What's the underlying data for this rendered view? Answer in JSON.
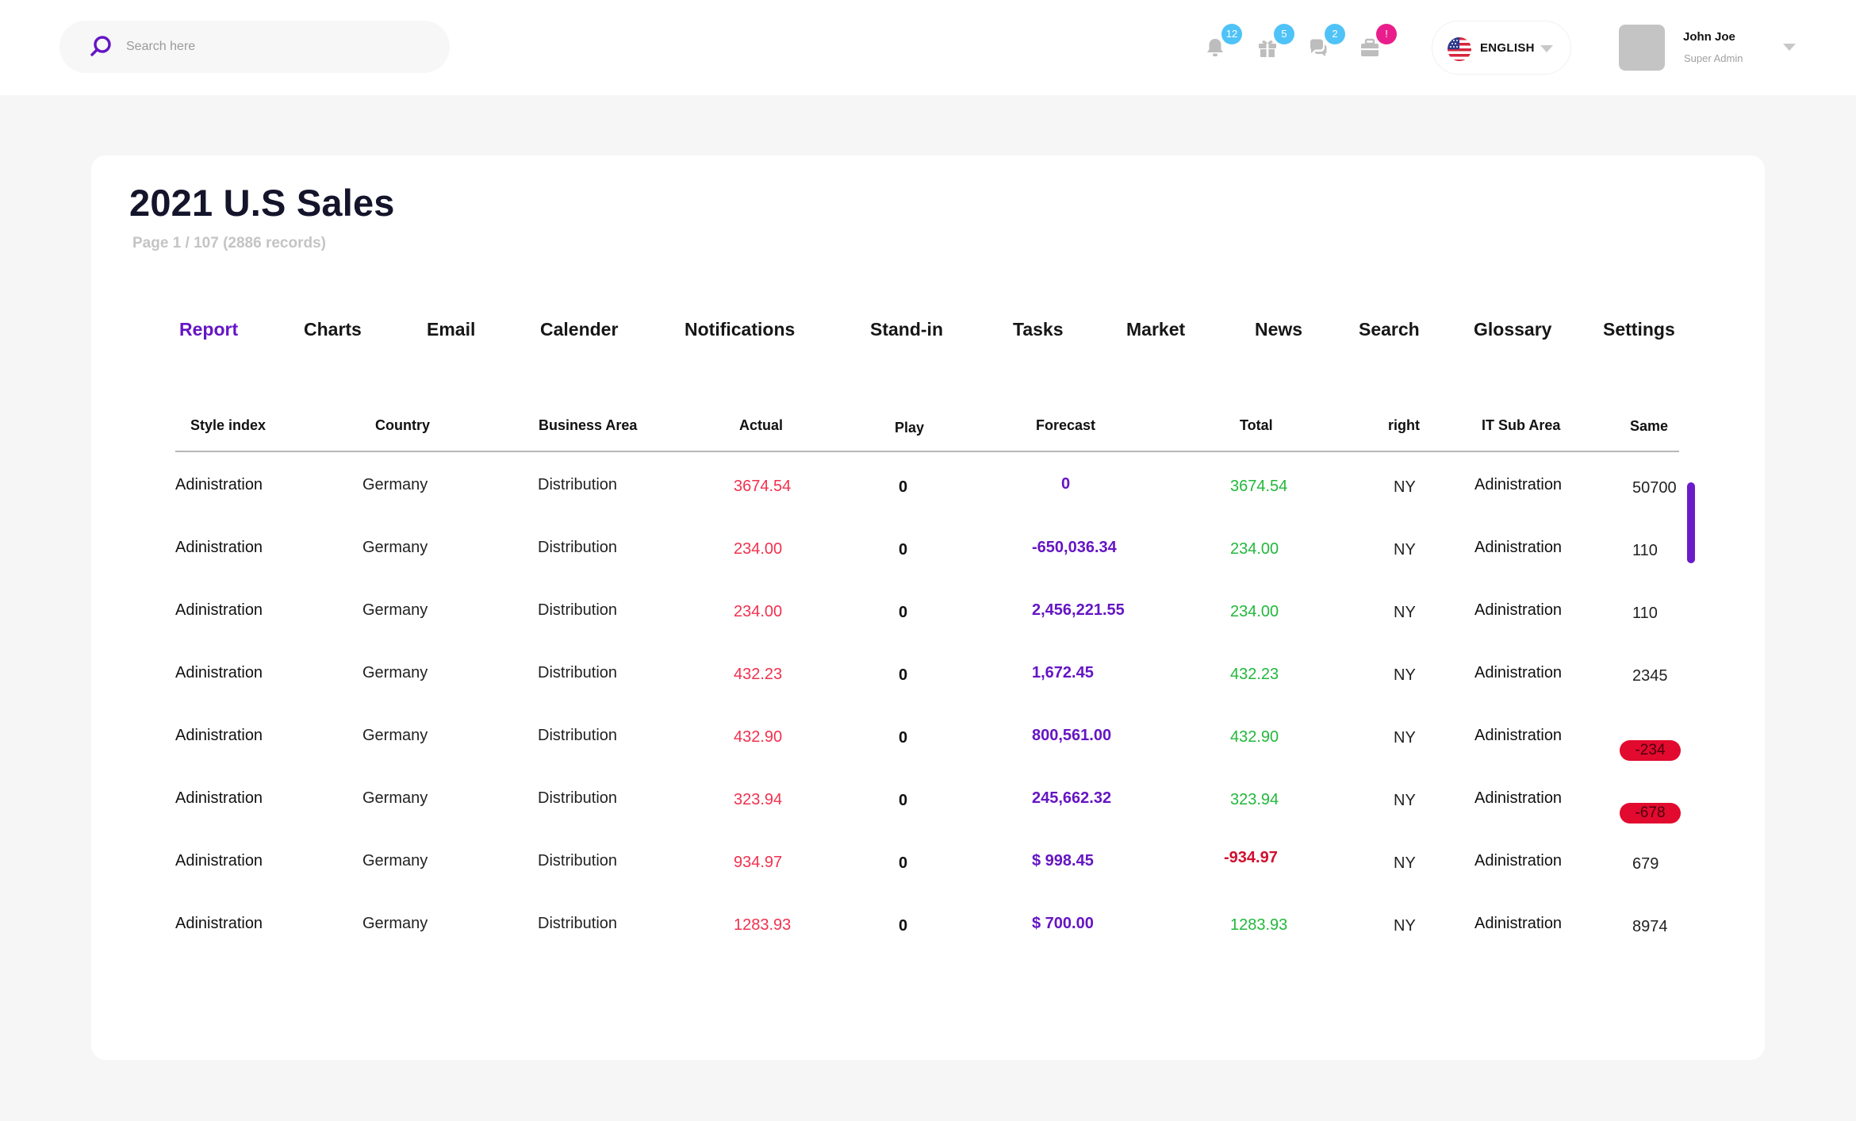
{
  "search": {
    "placeholder": "Search here"
  },
  "notifications": [
    {
      "icon": "bell-icon",
      "count": "12",
      "color": "#4fc3f7"
    },
    {
      "icon": "gift-icon",
      "count": "5",
      "color": "#4fc3f7"
    },
    {
      "icon": "chat-icon",
      "count": "2",
      "color": "#4fc3f7"
    },
    {
      "icon": "archive-icon",
      "count": "!",
      "color": "#e91e8c"
    }
  ],
  "language": {
    "label": "ENGLISH"
  },
  "user": {
    "name": "John Joe",
    "role": "Super Admin"
  },
  "page": {
    "title": "2021 U.S Sales",
    "subtitle": "Page 1 / 107 (2886 records)"
  },
  "tabs": [
    {
      "label": "Report",
      "active": true
    },
    {
      "label": "Charts"
    },
    {
      "label": "Email"
    },
    {
      "label": "Calender"
    },
    {
      "label": "Notifications"
    },
    {
      "label": "Stand-in"
    },
    {
      "label": "Tasks"
    },
    {
      "label": "Market"
    },
    {
      "label": "News"
    },
    {
      "label": "Search"
    },
    {
      "label": "Glossary"
    },
    {
      "label": "Settings"
    }
  ],
  "table": {
    "headers": [
      "Style index",
      "Country",
      "Business Area",
      "Actual",
      "Play",
      "Forecast",
      "Total",
      "right",
      "IT Sub Area",
      "Same"
    ],
    "rows": [
      {
        "style": "Adinistration",
        "country": "Germany",
        "area": "Distribution",
        "actual": "3674.54",
        "play": "0",
        "forecast": "0",
        "total": "3674.54",
        "right": "NY",
        "it": "Adinistration",
        "same": "50700"
      },
      {
        "style": "Adinistration",
        "country": "Germany",
        "area": "Distribution",
        "actual": "234.00",
        "play": "0",
        "forecast": "-650,036.34",
        "total": "234.00",
        "right": "NY",
        "it": "Adinistration",
        "same": "110"
      },
      {
        "style": "Adinistration",
        "country": "Germany",
        "area": "Distribution",
        "actual": "234.00",
        "play": "0",
        "forecast": "2,456,221.55",
        "total": "234.00",
        "right": "NY",
        "it": "Adinistration",
        "same": "110"
      },
      {
        "style": "Adinistration",
        "country": "Germany",
        "area": "Distribution",
        "actual": "432.23",
        "play": "0",
        "forecast": "1,672.45",
        "total": "432.23",
        "right": "NY",
        "it": "Adinistration",
        "same": "2345"
      },
      {
        "style": "Adinistration",
        "country": "Germany",
        "area": "Distribution",
        "actual": "432.90",
        "play": "0",
        "forecast": "800,561.00",
        "total": "432.90",
        "right": "NY",
        "it": "Adinistration",
        "same": "-234"
      },
      {
        "style": "Adinistration",
        "country": "Germany",
        "area": "Distribution",
        "actual": "323.94",
        "play": "0",
        "forecast": "245,662.32",
        "total": "323.94",
        "right": "NY",
        "it": "Adinistration",
        "same": "-678"
      },
      {
        "style": "Adinistration",
        "country": "Germany",
        "area": "Distribution",
        "actual": "934.97",
        "play": "0",
        "forecast": "$ 998.45",
        "total": "-934.97",
        "right": "NY",
        "it": "Adinistration",
        "same": "679"
      },
      {
        "style": "Adinistration",
        "country": "Germany",
        "area": "Distribution",
        "actual": "1283.93",
        "play": "0",
        "forecast": "$ 700.00",
        "total": "1283.93",
        "right": "NY",
        "it": "Adinistration",
        "same": "8974"
      }
    ]
  },
  "colors": {
    "accent": "#6515c4",
    "positive": "#22b83b",
    "negative": "#f0314e",
    "alert": "#e20a2e"
  }
}
